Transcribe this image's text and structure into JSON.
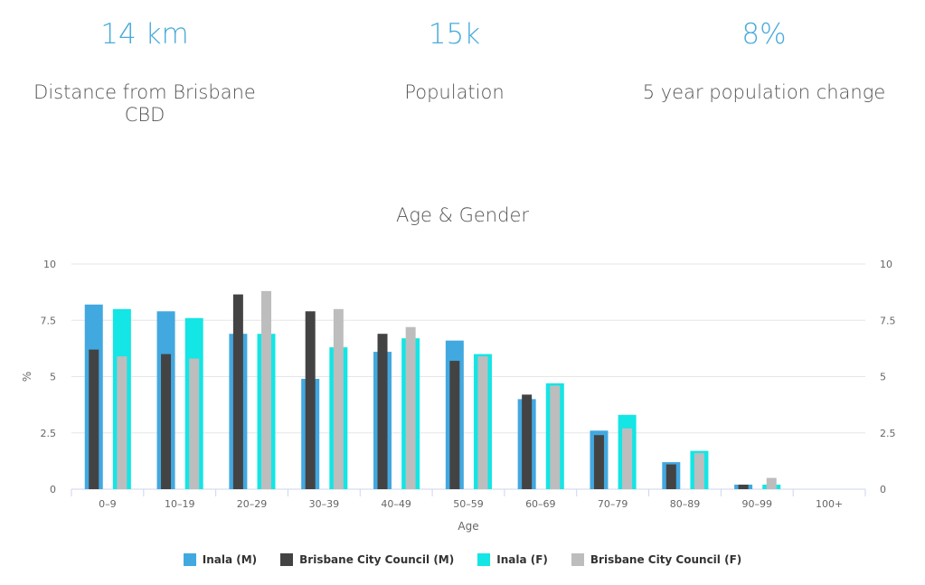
{
  "stats": [
    {
      "value": "14 km",
      "label": "Distance from Brisbane CBD"
    },
    {
      "value": "15k",
      "label": "Population"
    },
    {
      "value": "8%",
      "label": "5 year population change"
    }
  ],
  "colors": {
    "accent": "#4aabdb",
    "inala_m": "#42a8e0",
    "bcc_m": "#434343",
    "inala_f": "#14e5e5",
    "bcc_f": "#bdbdbd",
    "grid": "#e6e6e6"
  },
  "chart_data": {
    "type": "bar",
    "title": "Age & Gender",
    "xlabel": "Age",
    "ylabel": "%",
    "ylim": [
      0,
      10
    ],
    "yticks": [
      "0",
      "2.5",
      "5",
      "7.5",
      "10"
    ],
    "ytick_values": [
      0,
      2.5,
      5,
      7.5,
      10
    ],
    "secondary_y_axis": true,
    "grid": true,
    "legend_position": "bottom",
    "categories": [
      "0–9",
      "10–19",
      "20–29",
      "30–39",
      "40–49",
      "50–59",
      "60–69",
      "70–79",
      "80–89",
      "90–99",
      "100+"
    ],
    "series": [
      {
        "name": "Inala (M)",
        "color": "#42a8e0",
        "values": [
          8.2,
          7.9,
          6.9,
          4.9,
          6.1,
          6.6,
          4.0,
          2.6,
          1.2,
          0.2,
          0
        ]
      },
      {
        "name": "Brisbane City Council (M)",
        "color": "#434343",
        "values": [
          6.2,
          6.0,
          8.65,
          7.9,
          6.9,
          5.7,
          4.2,
          2.4,
          1.1,
          0.2,
          0
        ]
      },
      {
        "name": "Inala (F)",
        "color": "#14e5e5",
        "values": [
          8.0,
          7.6,
          6.9,
          6.3,
          6.7,
          6.0,
          4.7,
          3.3,
          1.7,
          0.2,
          0
        ]
      },
      {
        "name": "Brisbane City Council (F)",
        "color": "#bdbdbd",
        "values": [
          5.9,
          5.8,
          8.8,
          8.0,
          7.2,
          5.9,
          4.6,
          2.7,
          1.6,
          0.5,
          0
        ]
      }
    ]
  }
}
